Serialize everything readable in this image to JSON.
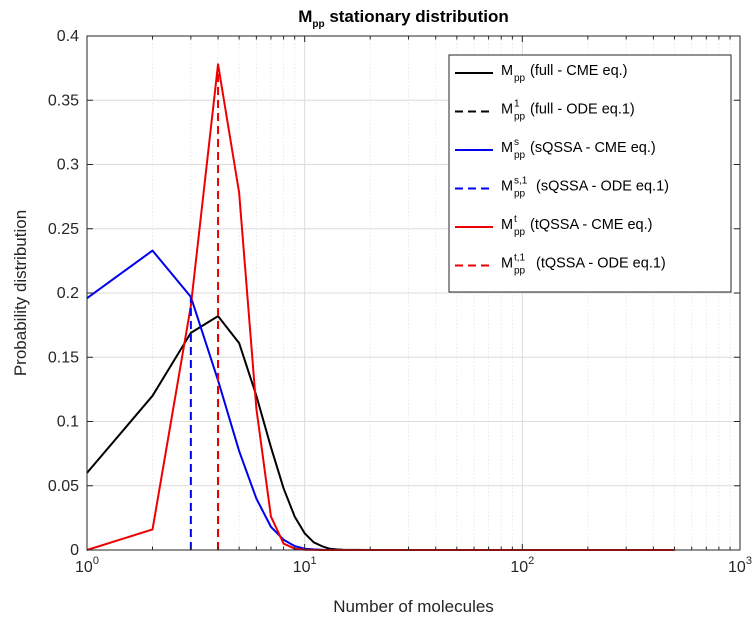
{
  "chart_data": {
    "type": "line",
    "title": {
      "main": "M",
      "sub": "pp",
      "rest": " stationary distribution"
    },
    "xlabel": "Number of molecules",
    "ylabel": "Probability distribution",
    "xscale": "log",
    "xlim": [
      1,
      1000
    ],
    "ylim": [
      0,
      0.4
    ],
    "xticks": [
      1,
      10,
      100,
      1000
    ],
    "xtick_labels": [
      {
        "base": "10",
        "exp": "0"
      },
      {
        "base": "10",
        "exp": "1"
      },
      {
        "base": "10",
        "exp": "2"
      },
      {
        "base": "10",
        "exp": "3"
      }
    ],
    "yticks": [
      0,
      0.05,
      0.1,
      0.15,
      0.2,
      0.25,
      0.3,
      0.35,
      0.4
    ],
    "ytick_labels": [
      "0",
      "0.05",
      "0.1",
      "0.15",
      "0.2",
      "0.25",
      "0.3",
      "0.35",
      "0.4"
    ],
    "grid": true,
    "legend_position": "top-right",
    "series": [
      {
        "kind": "curve",
        "color": "#000000",
        "dash": "solid",
        "legend": {
          "base": "M",
          "sub": "pp",
          "sup": "",
          "text": "(full - CME eq.)"
        },
        "x": [
          1,
          2,
          3,
          4,
          5,
          6,
          7,
          8,
          9,
          10,
          11,
          12,
          13,
          14,
          15,
          20,
          30,
          50,
          100,
          200,
          500
        ],
        "y": [
          0.06,
          0.12,
          0.169,
          0.182,
          0.161,
          0.12,
          0.08,
          0.048,
          0.026,
          0.013,
          0.006,
          0.003,
          0.001,
          0.0005,
          0.0002,
          0,
          0,
          0,
          0,
          0,
          0
        ]
      },
      {
        "kind": "vline",
        "color": "#000000",
        "dash": "dashed",
        "legend": {
          "base": "M",
          "sub": "pp",
          "sup": "1",
          "text": "(full - ODE eq.1)"
        },
        "x": 4,
        "y": 0.182
      },
      {
        "kind": "curve",
        "color": "#0000ee",
        "dash": "solid",
        "legend": {
          "base": "M",
          "sub": "pp",
          "sup": "s",
          "text": "(sQSSA - CME eq.)"
        },
        "x": [
          1,
          2,
          3,
          4,
          5,
          6,
          7,
          8,
          9,
          10,
          11,
          12,
          15,
          20,
          500
        ],
        "y": [
          0.196,
          0.233,
          0.197,
          0.132,
          0.077,
          0.04,
          0.018,
          0.008,
          0.003,
          0.001,
          0.0005,
          0.0002,
          0,
          0,
          0
        ]
      },
      {
        "kind": "vline",
        "color": "#0000ee",
        "dash": "dashed",
        "legend": {
          "base": "M",
          "sub": "pp",
          "sup": "s,1",
          "text": "(sQSSA - ODE eq.1)"
        },
        "x": 3,
        "y": 0.197
      },
      {
        "kind": "curve",
        "color": "#ee0000",
        "dash": "solid",
        "legend": {
          "base": "M",
          "sub": "pp",
          "sup": "t",
          "text": "(tQSSA - CME eq.)"
        },
        "x": [
          1,
          2,
          3,
          4,
          5,
          6,
          7,
          8,
          9,
          10,
          12,
          15,
          20,
          500
        ],
        "y": [
          0,
          0.016,
          0.19,
          0.378,
          0.278,
          0.11,
          0.026,
          0.005,
          0.001,
          0.0002,
          0,
          0,
          0,
          0
        ]
      },
      {
        "kind": "vline",
        "color": "#ee0000",
        "dash": "dashed",
        "legend": {
          "base": "M",
          "sub": "pp",
          "sup": "t,1",
          "text": "(tQSSA - ODE eq.1)"
        },
        "x": 4,
        "y": 0.378
      }
    ]
  }
}
